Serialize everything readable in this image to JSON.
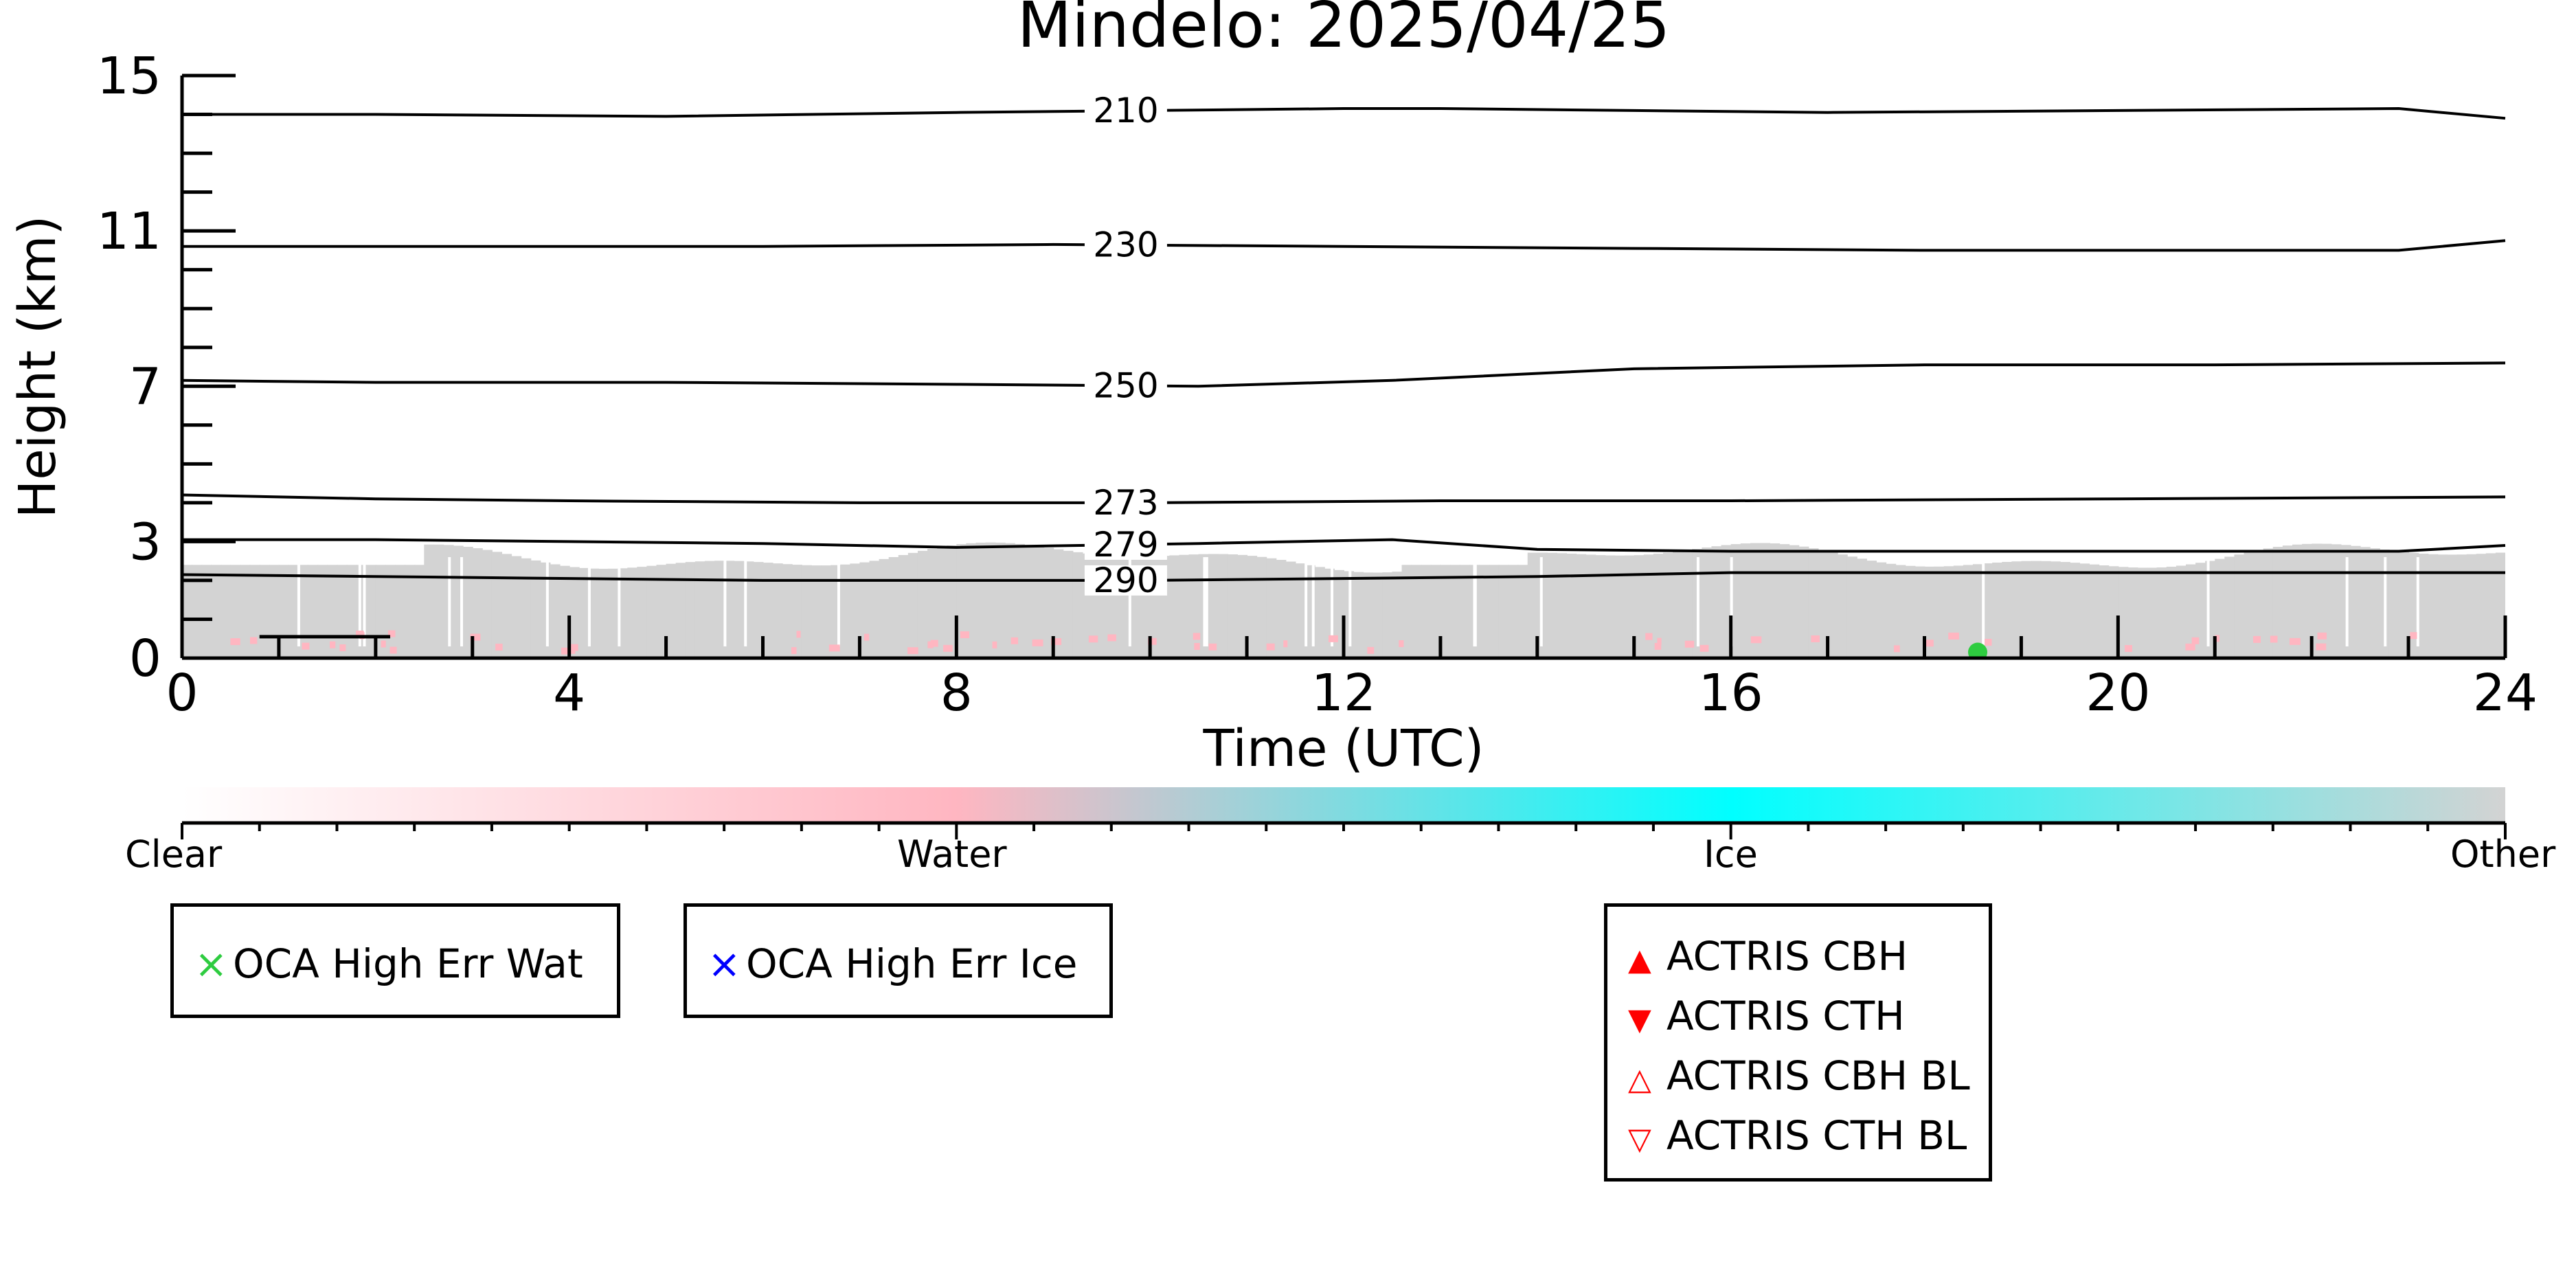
{
  "chart_data": {
    "type": "heatmap",
    "title": "Mindelo: 2025/04/25",
    "xlabel": "Time (UTC)",
    "ylabel": "Height (km)",
    "xlim": [
      0,
      24
    ],
    "ylim": [
      0,
      15
    ],
    "x_ticks": [
      0,
      4,
      8,
      12,
      16,
      20,
      24
    ],
    "y_ticks": [
      0,
      3,
      7,
      11,
      15
    ],
    "contours": [
      {
        "label": "210",
        "x": [
          0,
          2,
          5,
          8,
          10,
          12,
          13,
          15,
          17,
          20,
          22.9,
          24
        ],
        "y": [
          14.0,
          14.0,
          13.95,
          14.05,
          14.1,
          14.15,
          14.15,
          14.1,
          14.05,
          14.1,
          14.15,
          13.9
        ]
      },
      {
        "label": "230",
        "x": [
          0,
          3,
          6,
          9,
          12,
          15,
          18,
          22.9,
          24
        ],
        "y": [
          10.6,
          10.6,
          10.6,
          10.65,
          10.6,
          10.55,
          10.5,
          10.5,
          10.75
        ]
      },
      {
        "label": "250",
        "x": [
          0,
          2,
          5,
          8,
          10.5,
          12.5,
          15,
          18,
          21,
          24
        ],
        "y": [
          7.15,
          7.1,
          7.1,
          7.05,
          7.0,
          7.15,
          7.45,
          7.55,
          7.55,
          7.6
        ]
      },
      {
        "label": "273",
        "x": [
          0,
          2,
          4,
          7,
          10,
          13,
          16,
          20,
          24
        ],
        "y": [
          4.2,
          4.1,
          4.05,
          4.0,
          4.0,
          4.05,
          4.05,
          4.1,
          4.15
        ]
      },
      {
        "label": "279",
        "x": [
          0,
          2,
          4,
          6,
          8,
          10.5,
          12.5,
          14,
          16,
          18,
          22.9,
          24
        ],
        "y": [
          3.05,
          3.05,
          3.0,
          2.95,
          2.85,
          2.95,
          3.05,
          2.8,
          2.75,
          2.75,
          2.75,
          2.9
        ]
      },
      {
        "label": "290",
        "x": [
          0,
          2,
          4,
          6,
          8,
          10,
          12,
          14,
          16,
          18,
          20,
          22,
          24
        ],
        "y": [
          2.15,
          2.1,
          2.05,
          2.0,
          2.0,
          2.0,
          2.05,
          2.1,
          2.2,
          2.2,
          2.2,
          2.2,
          2.2
        ]
      }
    ],
    "colorbar": {
      "labels": [
        "Clear",
        "Water",
        "Ice",
        "Other"
      ],
      "colors": [
        "#ffffff",
        "#ffb6c1",
        "#00ffff",
        "#d3d3d3"
      ]
    },
    "legends": [
      {
        "items": [
          {
            "marker": "×",
            "color": "#2ecc40",
            "label": "OCA High Err Wat"
          }
        ]
      },
      {
        "items": [
          {
            "marker": "×",
            "color": "#0000ff",
            "label": "OCA High Err Ice"
          }
        ]
      },
      {
        "items": [
          {
            "marker": "▲",
            "color": "#ff0000",
            "label": "ACTRIS CBH"
          },
          {
            "marker": "▼",
            "color": "#ff0000",
            "label": "ACTRIS CTH"
          },
          {
            "marker": "△",
            "color": "#ff0000",
            "label": "ACTRIS CBH BL"
          },
          {
            "marker": "▽",
            "color": "#ff0000",
            "label": "ACTRIS CTH BL"
          }
        ]
      }
    ],
    "cloud_classes": {
      "other_color": "#d3d3d3",
      "water_color": "#ffb6c1",
      "oca_wat_color": "#2ecc40"
    }
  }
}
